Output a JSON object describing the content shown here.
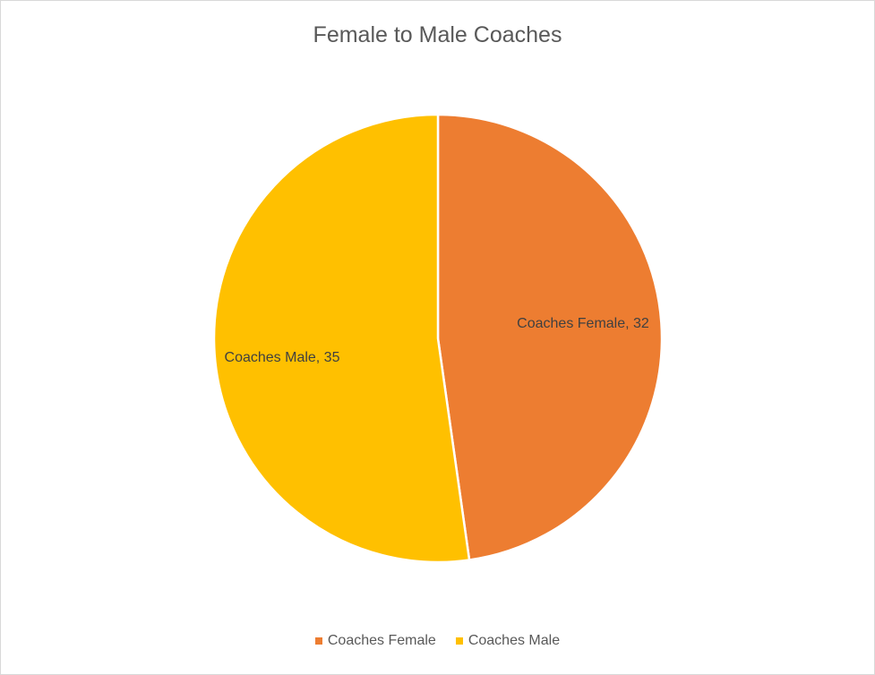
{
  "chart_data": {
    "type": "pie",
    "title": "Female to Male Coaches",
    "slices": [
      {
        "label": "Coaches Female",
        "value": 32,
        "color": "#ED7D31",
        "data_label": "Coaches Female, 32"
      },
      {
        "label": "Coaches Male",
        "value": 35,
        "color": "#FFC000",
        "data_label": "Coaches Male, 35"
      }
    ],
    "legend": {
      "placement": "bottom",
      "entries": [
        "Coaches Female",
        "Coaches Male"
      ]
    },
    "start_angle": "top",
    "direction": "clockwise"
  }
}
